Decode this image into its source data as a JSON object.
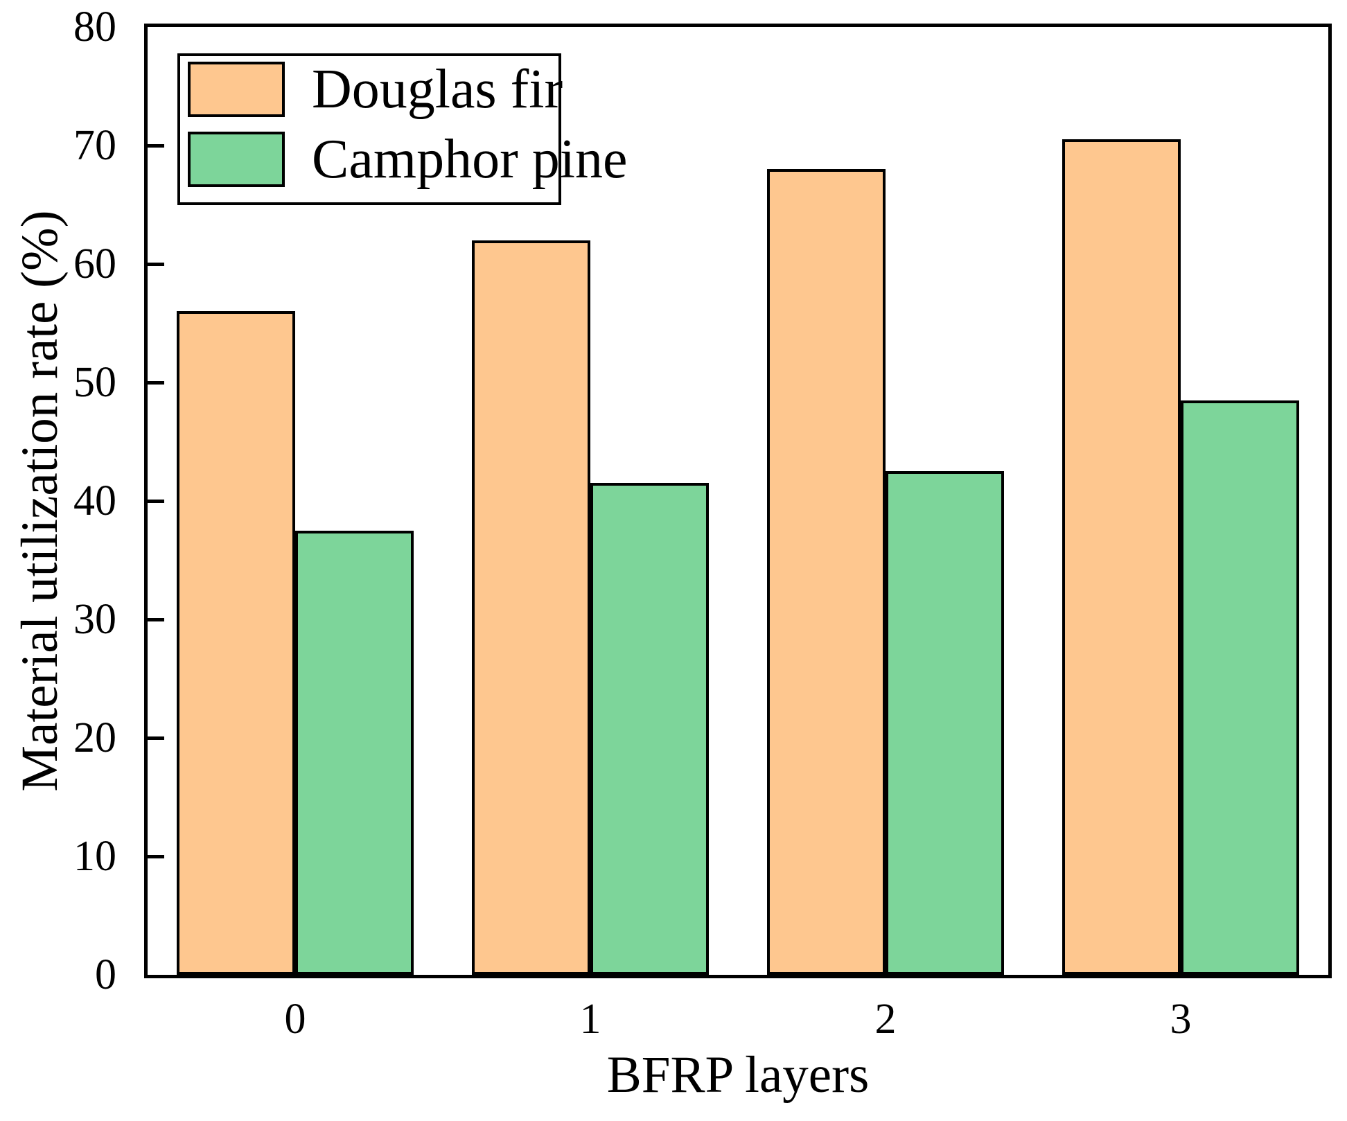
{
  "chart_data": {
    "type": "bar",
    "title": "",
    "xlabel": "BFRP layers",
    "ylabel": "Material utilization rate (%)",
    "categories": [
      "0",
      "1",
      "2",
      "3"
    ],
    "series": [
      {
        "name": "Douglas fir",
        "color": "#FEC78F",
        "border_color": "#000000",
        "values": [
          56,
          62,
          68,
          70.5
        ]
      },
      {
        "name": "Camphor pine",
        "color": "#7DD59A",
        "border_color": "#000000",
        "values": [
          37.5,
          41.5,
          42.5,
          48.5
        ]
      }
    ],
    "ylim": [
      0,
      80
    ],
    "yticks": [
      0,
      10,
      20,
      30,
      40,
      50,
      60,
      70,
      80
    ],
    "grid": false,
    "legend_position": "upper-left",
    "axis_color": "#000000",
    "background_color": "#FFFFFF"
  }
}
